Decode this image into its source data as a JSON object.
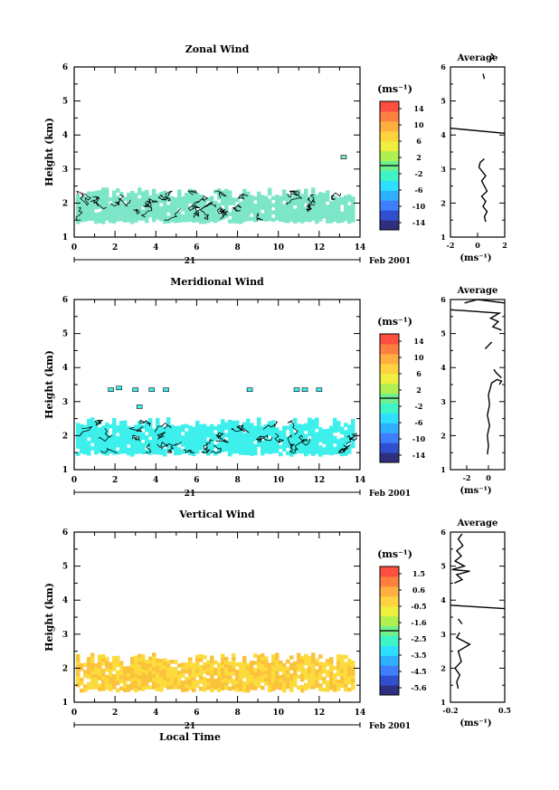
{
  "chart_data": [
    {
      "type": "heatmap",
      "title": "Zonal Wind",
      "ylabel": "Height (km)",
      "x": [
        0,
        2,
        4,
        6,
        8,
        10,
        12,
        14
      ],
      "y_ticks": [
        1,
        2,
        3,
        4,
        5,
        6
      ],
      "xlim": [
        0,
        14
      ],
      "ylim": [
        1,
        6
      ],
      "date_label": "21",
      "date_suffix": "Feb 2001",
      "colorbar": {
        "unit": "(ms⁻¹)",
        "ticks": [
          "14",
          "10",
          "6",
          "2",
          "-2",
          "-6",
          "-10",
          "-14"
        ]
      },
      "field": {
        "ymin": 1.5,
        "ymax": 2.3,
        "color": "#7ee6c8",
        "contours": true
      },
      "isolated": [
        [
          13.2,
          3.35
        ]
      ],
      "profile": {
        "title": "Average",
        "xlabel": "(ms⁻¹)",
        "xlim": [
          -2,
          2
        ],
        "x_ticks": [
          "-2",
          "0",
          "2"
        ],
        "segments": [
          [
            [
              0.6,
              1.45
            ],
            [
              0.5,
              1.6
            ],
            [
              0.7,
              1.75
            ],
            [
              0.4,
              1.9
            ],
            [
              0.6,
              2.05
            ],
            [
              0.3,
              2.2
            ],
            [
              0.7,
              2.35
            ],
            [
              0.5,
              2.5
            ],
            [
              0.3,
              2.65
            ],
            [
              0.6,
              2.8
            ],
            [
              0.3,
              2.95
            ],
            [
              0.1,
              3.05
            ],
            [
              0.2,
              3.2
            ],
            [
              0.5,
              3.3
            ]
          ],
          [
            [
              -2.0,
              4.2
            ],
            [
              2.0,
              4.05
            ]
          ],
          [
            [
              1.0,
              6.4
            ],
            [
              1.2,
              6.3
            ],
            [
              0.9,
              6.2
            ]
          ],
          [
            [
              0.4,
              5.8
            ],
            [
              0.5,
              5.65
            ]
          ]
        ]
      }
    },
    {
      "type": "heatmap",
      "title": "Meridional Wind",
      "ylabel": "Height (km)",
      "x": [
        0,
        2,
        4,
        6,
        8,
        10,
        12,
        14
      ],
      "y_ticks": [
        1,
        2,
        3,
        4,
        5,
        6
      ],
      "xlim": [
        0,
        14
      ],
      "ylim": [
        1,
        6
      ],
      "date_label": "21",
      "date_suffix": "Feb 2001",
      "colorbar": {
        "unit": "(ms⁻¹)",
        "ticks": [
          "14",
          "10",
          "6",
          "2",
          "-2",
          "-6",
          "-10",
          "-14"
        ]
      },
      "field": {
        "ymin": 1.5,
        "ymax": 2.4,
        "color": "#3ef0ec",
        "contours": true
      },
      "isolated": [
        [
          1.8,
          3.35
        ],
        [
          2.2,
          3.4
        ],
        [
          3.0,
          3.35
        ],
        [
          3.8,
          3.35
        ],
        [
          4.5,
          3.35
        ],
        [
          8.6,
          3.35
        ],
        [
          10.9,
          3.35
        ],
        [
          11.3,
          3.35
        ],
        [
          12.0,
          3.35
        ],
        [
          3.2,
          2.85
        ]
      ],
      "profile": {
        "title": "Average",
        "xlabel": "(ms⁻¹)",
        "xlim": [
          -3.5,
          1.5
        ],
        "x_ticks": [
          "-2",
          "0"
        ],
        "segments": [
          [
            [
              -0.1,
              1.45
            ],
            [
              0.0,
              1.7
            ],
            [
              -0.1,
              2.0
            ],
            [
              0.1,
              2.3
            ],
            [
              -0.1,
              2.6
            ],
            [
              0.1,
              2.9
            ],
            [
              0.0,
              3.2
            ],
            [
              0.3,
              3.55
            ],
            [
              0.8,
              3.65
            ],
            [
              1.2,
              3.6
            ],
            [
              1.0,
              3.5
            ]
          ],
          [
            [
              1.2,
              3.7
            ],
            [
              0.7,
              3.85
            ],
            [
              0.5,
              3.95
            ]
          ],
          [
            [
              -0.3,
              4.55
            ],
            [
              0.3,
              4.75
            ]
          ],
          [
            [
              -3.5,
              5.7
            ],
            [
              1.0,
              5.6
            ],
            [
              0.2,
              5.45
            ],
            [
              0.9,
              5.35
            ],
            [
              0.4,
              5.2
            ],
            [
              1.2,
              5.1
            ]
          ],
          [
            [
              -2.2,
              5.9
            ],
            [
              -1.0,
              6.0
            ],
            [
              1.5,
              5.9
            ]
          ]
        ]
      }
    },
    {
      "type": "heatmap",
      "title": "Vertical Wind",
      "ylabel": "Height (km)",
      "xlabel": "Local Time",
      "x": [
        0,
        2,
        4,
        6,
        8,
        10,
        12,
        14
      ],
      "y_ticks": [
        1,
        2,
        3,
        4,
        5,
        6
      ],
      "xlim": [
        0,
        14
      ],
      "ylim": [
        1,
        6
      ],
      "date_label": "21",
      "date_suffix": "Feb 2001",
      "colorbar": {
        "unit": "(ms⁻¹)",
        "ticks": [
          "1.5",
          "0.6",
          "-0.5",
          "-1.6",
          "-2.5",
          "-3.5",
          "-4.5",
          "-5.6"
        ]
      },
      "field": {
        "ymin": 1.4,
        "ymax": 2.3,
        "color": "#fcdc3c",
        "color2": "#fbc23c",
        "contours": false
      },
      "isolated": [],
      "profile": {
        "title": "Average",
        "xlabel": "(ms⁻¹)",
        "xlim": [
          -0.2,
          0.5
        ],
        "x_ticks": [
          "-0.2",
          "0.5"
        ],
        "segments": [
          [
            [
              -0.1,
              1.4
            ],
            [
              -0.12,
              1.6
            ],
            [
              -0.08,
              1.8
            ],
            [
              -0.14,
              2.0
            ],
            [
              -0.06,
              2.2
            ],
            [
              -0.1,
              2.5
            ],
            [
              0.05,
              2.7
            ],
            [
              -0.12,
              2.9
            ],
            [
              -0.08,
              3.05
            ]
          ],
          [
            [
              -0.05,
              3.3
            ],
            [
              -0.1,
              3.45
            ]
          ],
          [
            [
              -0.2,
              3.85
            ],
            [
              0.5,
              3.75
            ]
          ],
          [
            [
              -0.15,
              4.5
            ],
            [
              -0.05,
              4.6
            ],
            [
              -0.12,
              4.75
            ],
            [
              0.05,
              4.85
            ],
            [
              -0.18,
              4.9
            ],
            [
              -0.02,
              5.0
            ],
            [
              -0.14,
              5.15
            ],
            [
              -0.06,
              5.3
            ],
            [
              -0.12,
              5.45
            ],
            [
              -0.04,
              5.6
            ],
            [
              -0.1,
              5.8
            ],
            [
              -0.05,
              5.95
            ]
          ]
        ]
      }
    }
  ],
  "palette": [
    "#2f2f7f",
    "#2f4fcf",
    "#3f7fff",
    "#2fafff",
    "#2fdfff",
    "#3ff5c8",
    "#6ff08f",
    "#afef4f",
    "#efef3f",
    "#ffd23f",
    "#ffaf3f",
    "#ff7f3f",
    "#ff4f3f"
  ]
}
